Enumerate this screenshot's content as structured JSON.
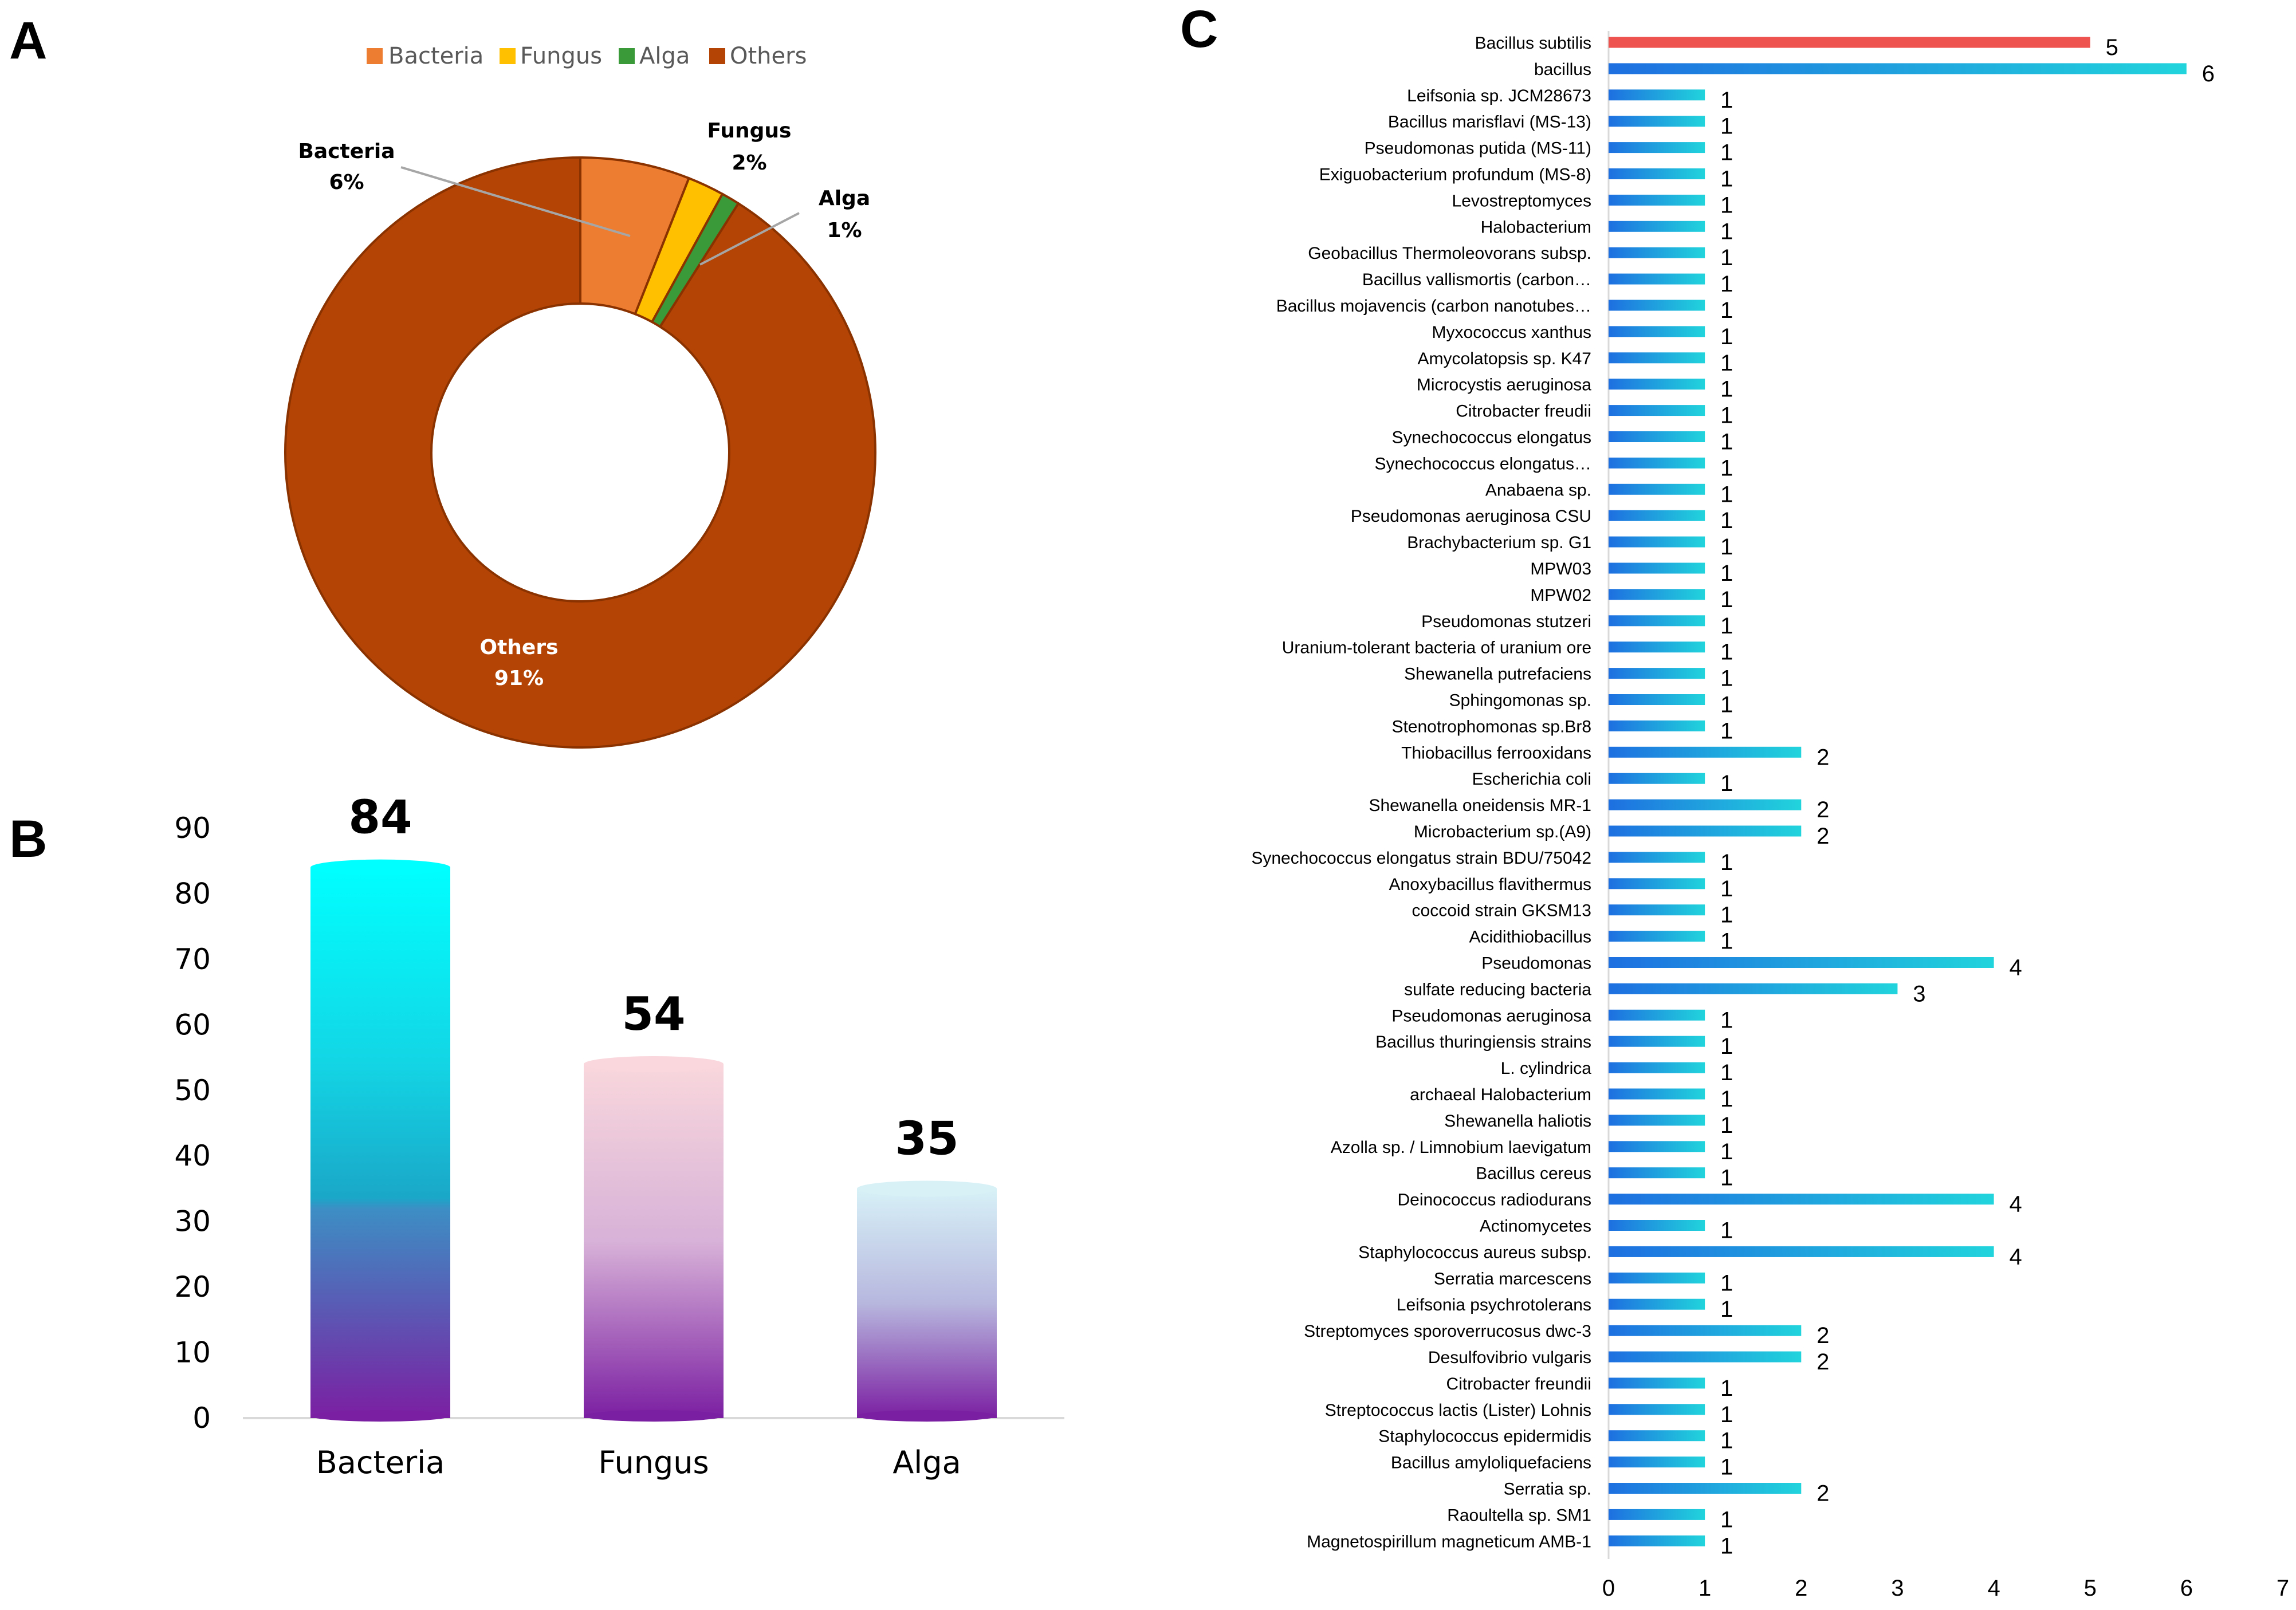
{
  "panels": {
    "a": "A",
    "b": "B",
    "c": "C"
  },
  "colors": {
    "bacteria": "#ED7D31",
    "fungus": "#FFC000",
    "alga": "#3A9A3A",
    "others": "#B34405",
    "highlight_bar": "#EF5350",
    "bar_start": "#1E7BE0",
    "bar_end": "#1FD0DC"
  },
  "chart_data": [
    {
      "id": "A",
      "type": "pie",
      "donut": true,
      "legend_position": "top",
      "legend": [
        "Bacteria",
        "Fungus",
        "Alga",
        "Others"
      ],
      "slices": [
        {
          "name": "Bacteria",
          "value": 6,
          "label": "6%"
        },
        {
          "name": "Fungus",
          "value": 2,
          "label": "2%"
        },
        {
          "name": "Alga",
          "value": 1,
          "label": "1%"
        },
        {
          "name": "Others",
          "value": 91,
          "label": "91%"
        }
      ]
    },
    {
      "id": "B",
      "type": "bar",
      "categories": [
        "Bacteria",
        "Fungus",
        "Alga"
      ],
      "values": [
        84,
        54,
        35
      ],
      "value_labels": [
        "84",
        "54",
        "35"
      ],
      "ylim": [
        0,
        90
      ],
      "yticks": [
        "0",
        "10",
        "20",
        "30",
        "40",
        "50",
        "60",
        "70",
        "80",
        "90"
      ]
    },
    {
      "id": "C",
      "type": "bar",
      "orientation": "horizontal",
      "xlim": [
        0,
        7
      ],
      "xticks": [
        "0",
        "1",
        "2",
        "3",
        "4",
        "5",
        "6",
        "7"
      ],
      "categories": [
        "Bacillus subtilis",
        "bacillus",
        "Leifsonia sp. JCM28673",
        "Bacillus marisflavi (MS-13)",
        "Pseudomonas putida (MS-11)",
        "Exiguobacterium profundum (MS-8)",
        "Levostreptomyces",
        "Halobacterium",
        "Geobacillus Thermoleovorans subsp.",
        "Bacillus vallismortis (carbon…",
        "Bacillus mojavencis (carbon nanotubes…",
        "Myxococcus xanthus",
        "Amycolatopsis sp. K47",
        "Microcystis aeruginosa",
        "Citrobacter freudii",
        "Synechococcus elongatus",
        "Synechococcus elongatus…",
        "Anabaena sp.",
        "Pseudomonas aeruginosa CSU",
        "Brachybacterium sp. G1",
        "MPW03",
        "MPW02",
        "Pseudomonas stutzeri",
        "Uranium-tolerant bacteria of uranium ore",
        "Shewanella putrefaciens",
        "Sphingomonas sp.",
        "Stenotrophomonas sp.Br8",
        "Thiobacillus ferrooxidans",
        "Escherichia coli",
        "Shewanella oneidensis MR-1",
        "Microbacterium sp.(A9)",
        "Synechococcus elongatus strain BDU/75042",
        "Anoxybacillus flavithermus",
        "coccoid strain GKSM13",
        "Acidithiobacillus",
        "Pseudomonas",
        "sulfate reducing bacteria",
        "Pseudomonas aeruginosa",
        "Bacillus thuringiensis strains",
        "L. cylindrica",
        "archaeal Halobacterium",
        "Shewanella haliotis",
        "Azolla sp. / Limnobium laevigatum",
        "Bacillus cereus",
        "Deinococcus radiodurans",
        "Actinomycetes",
        "Staphylococcus aureus subsp.",
        "Serratia marcescens",
        "Leifsonia psychrotolerans",
        "Streptomyces sporoverrucosus dwc-3",
        "Desulfovibrio vulgaris",
        "Citrobacter freundii",
        "Streptococcus lactis (Lister) Lohnis",
        "Staphylococcus epidermidis",
        "Bacillus amyloliquefaciens",
        "Serratia sp.",
        "Raoultella sp. SM1",
        "Magnetospirillum magneticum AMB-1"
      ],
      "values": [
        5,
        6,
        1,
        1,
        1,
        1,
        1,
        1,
        1,
        1,
        1,
        1,
        1,
        1,
        1,
        1,
        1,
        1,
        1,
        1,
        1,
        1,
        1,
        1,
        1,
        1,
        1,
        2,
        1,
        2,
        2,
        1,
        1,
        1,
        1,
        4,
        3,
        1,
        1,
        1,
        1,
        1,
        1,
        1,
        4,
        1,
        4,
        1,
        1,
        2,
        2,
        1,
        1,
        1,
        1,
        2,
        1,
        1
      ],
      "value_labels": [
        "5",
        "6",
        "1",
        "1",
        "1",
        "1",
        "1",
        "1",
        "1",
        "1",
        "1",
        "1",
        "1",
        "1",
        "1",
        "1",
        "1",
        "1",
        "1",
        "1",
        "1",
        "1",
        "1",
        "1",
        "1",
        "1",
        "1",
        "2",
        "1",
        "2",
        "2",
        "1",
        "1",
        "1",
        "1",
        "4",
        "3",
        "1",
        "1",
        "1",
        "1",
        "1",
        "1",
        "1",
        "4",
        "1",
        "4",
        "1",
        "1",
        "2",
        "2",
        "1",
        "1",
        "1",
        "1",
        "2",
        "1",
        "1"
      ]
    }
  ]
}
